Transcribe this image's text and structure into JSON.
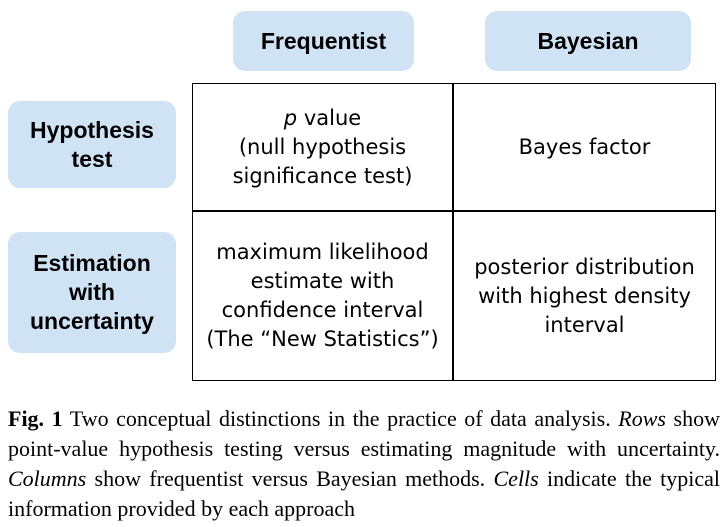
{
  "columns": {
    "frequentist": "Frequentist",
    "bayesian": "Bayesian"
  },
  "rows": {
    "hypothesis_line1": "Hypothesis",
    "hypothesis_line2": "test",
    "estimation_line1": "Estimation",
    "estimation_line2": "with",
    "estimation_line3": "uncertainty"
  },
  "cells": {
    "freq_hyp": {
      "p": "p",
      "line1_rest": " value",
      "line2": "(null hypothesis",
      "line3": "significance test)"
    },
    "bayes_hyp": {
      "line1": "Bayes factor"
    },
    "freq_est": {
      "line1": "maximum likelihood",
      "line2": "estimate with",
      "line3": "confidence interval",
      "line4": "(The “New Statistics”)"
    },
    "bayes_est": {
      "line1": "posterior distribution",
      "line2": "with highest density",
      "line3": "interval"
    }
  },
  "caption": {
    "label": "Fig. 1",
    "text1": "  Two conceptual distinctions in the practice of data analysis. ",
    "rows_word": "Rows",
    "text2": " show point-value hypothesis testing versus estimating magnitude with uncertainty. ",
    "columns_word": "Columns",
    "text3": " show frequentist versus Bayesian methods. ",
    "cells_word": "Cells",
    "text4": " indicate the typical information provided by each approach"
  },
  "colors": {
    "pill_fill": "#cfe3f4",
    "grid_line": "#000000"
  }
}
